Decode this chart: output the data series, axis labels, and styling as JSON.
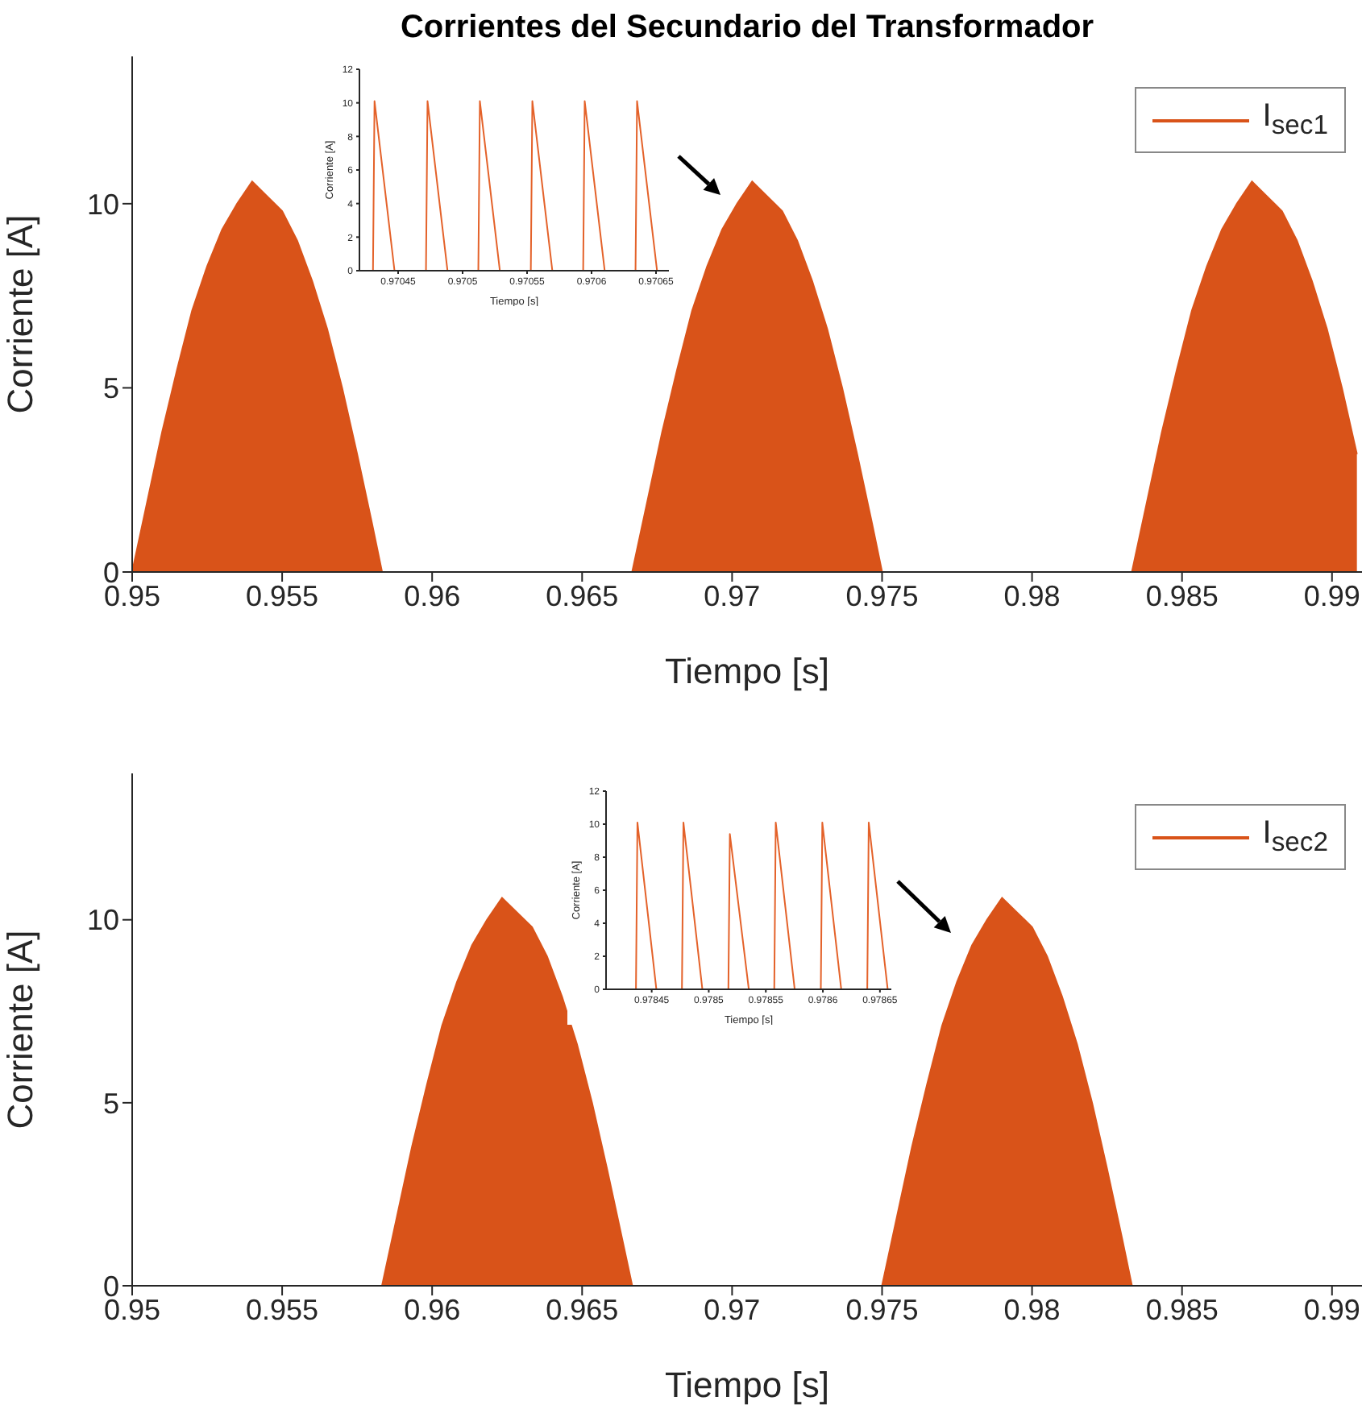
{
  "chart_data": [
    {
      "type": "area",
      "title": "Corrientes del Secundario del Transformador",
      "xlabel": "Tiempo [s]",
      "ylabel": "Corriente [A]",
      "xlim": [
        0.95,
        0.991
      ],
      "ylim": [
        0,
        14
      ],
      "xticks": [
        0.95,
        0.955,
        0.96,
        0.965,
        0.97,
        0.975,
        0.98,
        0.985,
        0.99
      ],
      "yticks": [
        0,
        5,
        10
      ],
      "legend": "top right",
      "series": [
        {
          "name": "I$_{sec1}$",
          "color": "#d95319",
          "x": [
            0.95,
            0.9505,
            0.951,
            0.9515,
            0.952,
            0.9525,
            0.953,
            0.9535,
            0.954,
            0.9545,
            0.955,
            0.9555,
            0.956,
            0.9565,
            0.957,
            0.9575,
            0.958,
            0.95833,
            0.96667,
            0.96717,
            0.96767,
            0.96817,
            0.96867,
            0.96917,
            0.96967,
            0.97017,
            0.97067,
            0.97117,
            0.97167,
            0.97217,
            0.97267,
            0.97317,
            0.97367,
            0.97417,
            0.97467,
            0.975,
            0.98333,
            0.98383,
            0.98433,
            0.98483,
            0.98533,
            0.98583,
            0.98633,
            0.98683,
            0.98733,
            0.98783,
            0.98833,
            0.98883,
            0.98933,
            0.98983,
            0.99033,
            0.99083
          ],
          "values": [
            0,
            1.9,
            3.8,
            5.5,
            7.1,
            8.3,
            9.3,
            10.0,
            10.6,
            10.2,
            9.8,
            9.0,
            7.9,
            6.6,
            5.0,
            3.2,
            1.3,
            0,
            0,
            1.9,
            3.8,
            5.5,
            7.1,
            8.3,
            9.3,
            10.0,
            10.6,
            10.2,
            9.8,
            9.0,
            7.9,
            6.6,
            5.0,
            3.2,
            1.3,
            0,
            0,
            1.9,
            3.8,
            5.5,
            7.1,
            8.3,
            9.3,
            10.0,
            10.6,
            10.2,
            9.8,
            9.0,
            7.9,
            6.6,
            5.0,
            3.2
          ]
        }
      ]
    },
    {
      "type": "line",
      "xlabel": "Tiempo [s]",
      "ylabel": "Corriente [A]",
      "xlim": [
        0.97042,
        0.97066
      ],
      "ylim": [
        0,
        12
      ],
      "xticks": [
        0.97045,
        0.9705,
        0.97055,
        0.9706,
        0.97065
      ],
      "yticks": [
        0,
        2,
        4,
        6,
        8,
        10,
        12
      ],
      "series": [
        {
          "color": "#e4622a",
          "x": [
            0.97042,
            0.9704305,
            0.9704317,
            0.9704472,
            0.9704716,
            0.9704728,
            0.9704883,
            0.9705122,
            0.9705134,
            0.9705289,
            0.9705529,
            0.9705541,
            0.9705696,
            0.9705935,
            0.9705947,
            0.9706102,
            0.9706341,
            0.9706353,
            0.9706508
          ],
          "values": [
            0,
            0,
            10.1,
            0,
            0,
            10.1,
            0,
            0,
            10.1,
            0,
            0,
            10.1,
            0,
            0,
            10.1,
            0,
            0,
            10.1,
            0
          ]
        }
      ]
    },
    {
      "type": "area",
      "xlabel": "Tiempo [s]",
      "ylabel": "Corriente [A]",
      "xlim": [
        0.95,
        0.991
      ],
      "ylim": [
        0,
        14
      ],
      "xticks": [
        0.95,
        0.955,
        0.96,
        0.965,
        0.97,
        0.975,
        0.98,
        0.985,
        0.99
      ],
      "yticks": [
        0,
        5,
        10
      ],
      "legend": "top right",
      "series": [
        {
          "name": "I$_{sec2}$",
          "color": "#d95319",
          "x": [
            0.95,
            0.95833,
            0.95883,
            0.95933,
            0.95983,
            0.96033,
            0.96083,
            0.96133,
            0.96183,
            0.96233,
            0.96283,
            0.96333,
            0.96383,
            0.96433,
            0.96483,
            0.96533,
            0.96583,
            0.96633,
            0.96667,
            0.975,
            0.9755,
            0.976,
            0.9765,
            0.977,
            0.9775,
            0.978,
            0.9785,
            0.979,
            0.9795,
            0.98,
            0.9805,
            0.981,
            0.9815,
            0.982,
            0.9825,
            0.983,
            0.98333,
            0.991
          ],
          "values": [
            0,
            0,
            1.9,
            3.8,
            5.5,
            7.1,
            8.3,
            9.3,
            10.0,
            10.6,
            10.2,
            9.8,
            9.0,
            7.9,
            6.6,
            5.0,
            3.2,
            1.3,
            0,
            0,
            1.9,
            3.8,
            5.5,
            7.1,
            8.3,
            9.3,
            10.0,
            10.6,
            10.2,
            9.8,
            9.0,
            7.9,
            6.6,
            5.0,
            3.2,
            1.3,
            0,
            0
          ]
        }
      ]
    },
    {
      "type": "line",
      "xlabel": "Tiempo [s]",
      "ylabel": "Corriente [A]",
      "xlim": [
        0.97841,
        0.97866
      ],
      "ylim": [
        0,
        12
      ],
      "xticks": [
        0.97845,
        0.9785,
        0.97855,
        0.9786,
        0.97865
      ],
      "yticks": [
        0,
        2,
        4,
        6,
        8,
        10,
        12
      ],
      "series": [
        {
          "color": "#e4622a",
          "x": [
            0.97841,
            0.9784362,
            0.9784375,
            0.9784541,
            0.9784765,
            0.9784778,
            0.9784944,
            0.9785172,
            0.9785185,
            0.9785351,
            0.9785574,
            0.9785587,
            0.9785753,
            0.9785982,
            0.9785995,
            0.9786161,
            0.9786389,
            0.9786402,
            0.9786568,
            0.97866
          ],
          "values": [
            0,
            0,
            10.1,
            0,
            0,
            10.1,
            0,
            0,
            9.4,
            0,
            0,
            10.1,
            0,
            0,
            10.1,
            0,
            0,
            10.1,
            0,
            0
          ]
        }
      ]
    }
  ]
}
